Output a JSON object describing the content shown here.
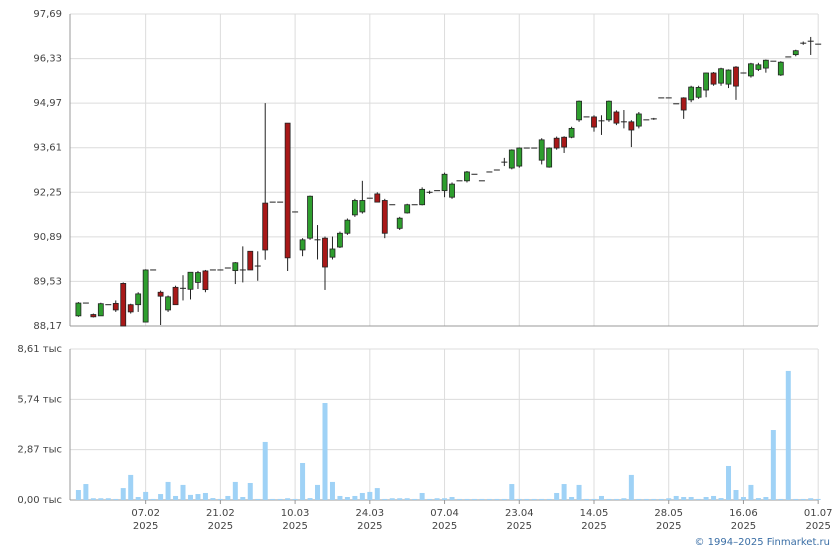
{
  "chart_data": [
    {
      "type": "candlestick",
      "ylim": [
        88.17,
        97.69
      ],
      "yticks": [
        {
          "value": 88.17,
          "label": "88,17"
        },
        {
          "value": 89.53,
          "label": "89,53"
        },
        {
          "value": 90.89,
          "label": "90,89"
        },
        {
          "value": 92.25,
          "label": "92,25"
        },
        {
          "value": 93.61,
          "label": "93,61"
        },
        {
          "value": 94.97,
          "label": "94,97"
        },
        {
          "value": 96.33,
          "label": "96,33"
        },
        {
          "value": 97.69,
          "label": "97,69"
        }
      ],
      "grid": true,
      "up_color": "#2e9e2e",
      "down_color": "#a81818",
      "open": [
        88.48,
        88.87,
        88.52,
        88.48,
        88.82,
        88.86,
        89.47,
        88.82,
        88.82,
        88.29,
        89.88,
        89.2,
        88.66,
        89.35,
        89.32,
        89.29,
        89.5,
        89.85,
        89.88,
        89.88,
        89.94,
        89.86,
        89.88,
        90.45,
        90.0,
        91.92,
        91.95,
        91.95,
        94.36,
        91.65,
        90.49,
        90.85,
        90.8,
        90.85,
        90.27,
        90.58,
        91.0,
        91.56,
        91.65,
        92.07,
        92.2,
        92.0,
        91.87,
        91.15,
        91.62,
        91.87,
        91.87,
        92.25,
        92.3,
        92.3,
        92.1,
        92.6,
        92.6,
        92.8,
        92.6,
        92.87,
        92.93,
        93.17,
        92.99,
        93.05,
        93.6,
        93.6,
        93.23,
        93.02,
        93.9,
        93.93,
        93.93,
        94.46,
        94.55,
        94.55,
        94.43,
        94.46,
        94.7,
        94.4,
        94.4,
        94.27,
        94.46,
        94.49,
        95.13,
        95.13,
        94.95,
        95.13,
        95.07,
        95.15,
        95.37,
        95.89,
        95.58,
        95.55,
        96.07,
        95.89,
        95.8,
        96.0,
        96.04,
        96.25,
        95.83,
        96.38,
        96.45,
        96.8,
        96.86,
        96.77
      ],
      "high": [
        88.9,
        88.87,
        88.55,
        88.88,
        88.82,
        88.95,
        89.5,
        88.85,
        89.2,
        89.9,
        89.88,
        89.25,
        89.1,
        89.4,
        89.72,
        89.81,
        89.85,
        89.88,
        89.88,
        89.88,
        89.94,
        90.12,
        90.6,
        90.45,
        90.45,
        94.97,
        91.95,
        91.95,
        94.36,
        91.65,
        90.85,
        92.15,
        91.25,
        90.9,
        90.9,
        91.05,
        91.45,
        92.05,
        92.6,
        92.07,
        92.25,
        92.05,
        91.87,
        91.5,
        91.9,
        91.87,
        92.4,
        92.3,
        92.3,
        92.85,
        92.55,
        92.6,
        92.9,
        92.8,
        92.6,
        92.87,
        92.93,
        93.3,
        93.56,
        93.62,
        93.6,
        93.6,
        93.9,
        93.62,
        93.95,
        93.96,
        94.25,
        95.05,
        94.55,
        94.6,
        94.6,
        95.05,
        94.75,
        94.76,
        94.45,
        94.7,
        94.46,
        94.52,
        95.13,
        95.13,
        94.95,
        95.15,
        95.5,
        95.5,
        95.9,
        95.92,
        96.05,
        96.0,
        96.1,
        95.89,
        96.2,
        96.2,
        96.3,
        96.25,
        96.25,
        96.38,
        96.6,
        96.85,
        96.99,
        96.77
      ],
      "low": [
        88.45,
        88.87,
        88.43,
        88.48,
        88.82,
        88.6,
        88.17,
        88.55,
        88.6,
        88.29,
        89.88,
        88.2,
        88.6,
        88.82,
        88.95,
        88.98,
        89.3,
        89.2,
        89.88,
        89.88,
        89.94,
        89.45,
        89.5,
        89.88,
        89.55,
        90.19,
        91.95,
        91.95,
        89.85,
        91.65,
        90.3,
        90.8,
        90.2,
        89.27,
        90.2,
        90.55,
        90.95,
        91.5,
        91.6,
        92.07,
        91.95,
        90.85,
        91.87,
        91.1,
        91.6,
        91.87,
        91.85,
        92.2,
        92.3,
        92.1,
        92.05,
        92.6,
        92.55,
        92.8,
        92.6,
        92.87,
        92.93,
        93.05,
        92.95,
        93.0,
        93.6,
        93.6,
        93.1,
        93.0,
        93.55,
        93.45,
        93.9,
        94.4,
        94.55,
        94.1,
        94.0,
        94.4,
        94.3,
        94.2,
        93.63,
        94.2,
        94.46,
        94.46,
        95.13,
        95.13,
        94.95,
        94.49,
        95.0,
        95.1,
        95.15,
        95.5,
        95.5,
        95.43,
        95.07,
        95.89,
        95.75,
        95.95,
        95.9,
        96.25,
        95.8,
        96.38,
        96.4,
        96.75,
        96.44,
        96.77
      ],
      "close": [
        88.87,
        88.87,
        88.45,
        88.85,
        88.82,
        88.66,
        88.17,
        88.6,
        89.15,
        89.88,
        89.88,
        89.08,
        89.06,
        88.82,
        89.32,
        89.81,
        89.8,
        89.28,
        89.88,
        89.88,
        89.94,
        90.1,
        89.88,
        89.88,
        90.0,
        90.49,
        91.95,
        91.95,
        90.25,
        91.65,
        90.8,
        92.13,
        90.8,
        89.97,
        90.52,
        91.0,
        91.4,
        92.0,
        92.0,
        92.07,
        91.95,
        91.0,
        91.87,
        91.46,
        91.87,
        91.87,
        92.34,
        92.25,
        92.3,
        92.8,
        92.5,
        92.6,
        92.87,
        92.8,
        92.6,
        92.87,
        92.93,
        93.17,
        93.54,
        93.6,
        93.6,
        93.6,
        93.85,
        93.6,
        93.6,
        93.63,
        94.2,
        95.03,
        94.55,
        94.24,
        94.43,
        95.03,
        94.36,
        94.4,
        94.15,
        94.64,
        94.46,
        94.49,
        95.13,
        95.13,
        94.95,
        94.76,
        95.46,
        95.45,
        95.89,
        95.55,
        96.02,
        95.98,
        95.49,
        95.89,
        96.17,
        96.14,
        96.28,
        96.25,
        96.22,
        96.38,
        96.57,
        96.8,
        96.86,
        96.77
      ]
    },
    {
      "type": "bar",
      "color": "#9fd2f6",
      "ylim": [
        0,
        8.61
      ],
      "yticks": [
        {
          "value": 0,
          "label": "0,00 тыс"
        },
        {
          "value": 2.87,
          "label": "2,87 тыс"
        },
        {
          "value": 5.74,
          "label": "5,74 тыс"
        },
        {
          "value": 8.61,
          "label": "8,61 тыс"
        }
      ],
      "grid": true,
      "categories": [
        null,
        null,
        null,
        null,
        null,
        null,
        null,
        null,
        null,
        "07.02\n2025",
        null,
        null,
        null,
        null,
        null,
        null,
        null,
        null,
        null,
        "21.02\n2025",
        null,
        null,
        null,
        null,
        null,
        null,
        null,
        null,
        null,
        "10.03\n2025",
        null,
        null,
        null,
        null,
        null,
        null,
        null,
        null,
        null,
        "24.03\n2025",
        null,
        null,
        null,
        null,
        null,
        null,
        null,
        null,
        null,
        "07.04\n2025",
        null,
        null,
        null,
        null,
        null,
        null,
        null,
        null,
        null,
        "23.04\n2025",
        null,
        null,
        null,
        null,
        null,
        null,
        null,
        null,
        null,
        "14.05\n2025",
        null,
        null,
        null,
        null,
        null,
        null,
        null,
        null,
        null,
        "28.05\n2025",
        null,
        null,
        null,
        null,
        null,
        null,
        null,
        null,
        null,
        "16.06\n2025",
        null,
        null,
        null,
        null,
        null,
        null,
        null,
        null,
        null,
        "01.07\n2025"
      ],
      "values": [
        0.57,
        0.91,
        0.1,
        0.1,
        0.1,
        0.06,
        0.68,
        1.43,
        0.17,
        0.46,
        0.06,
        0.34,
        1.03,
        0.23,
        0.86,
        0.29,
        0.34,
        0.4,
        0.11,
        0.06,
        0.23,
        1.03,
        0.17,
        0.97,
        0.06,
        3.31,
        0.06,
        0.06,
        0.1,
        0.06,
        2.11,
        0.11,
        0.86,
        5.53,
        1.03,
        0.23,
        0.17,
        0.23,
        0.4,
        0.46,
        0.68,
        0.06,
        0.1,
        0.1,
        0.1,
        0.06,
        0.4,
        0.06,
        0.1,
        0.1,
        0.17,
        0.06,
        0.06,
        0.06,
        0.06,
        0.06,
        0.06,
        0.06,
        0.91,
        0.06,
        0.06,
        0.06,
        0.06,
        0.06,
        0.4,
        0.91,
        0.17,
        0.86,
        0.06,
        0.06,
        0.23,
        0.06,
        0.06,
        0.1,
        1.43,
        0.06,
        0.06,
        0.06,
        0.06,
        0.1,
        0.23,
        0.17,
        0.17,
        0.06,
        0.17,
        0.23,
        0.11,
        1.94,
        0.57,
        0.17,
        0.86,
        0.11,
        0.17,
        3.99,
        0.06,
        7.36,
        0.06,
        0.06,
        0.1,
        0.06
      ]
    }
  ],
  "footer": "© 1994–2025 Finmarket.ru"
}
